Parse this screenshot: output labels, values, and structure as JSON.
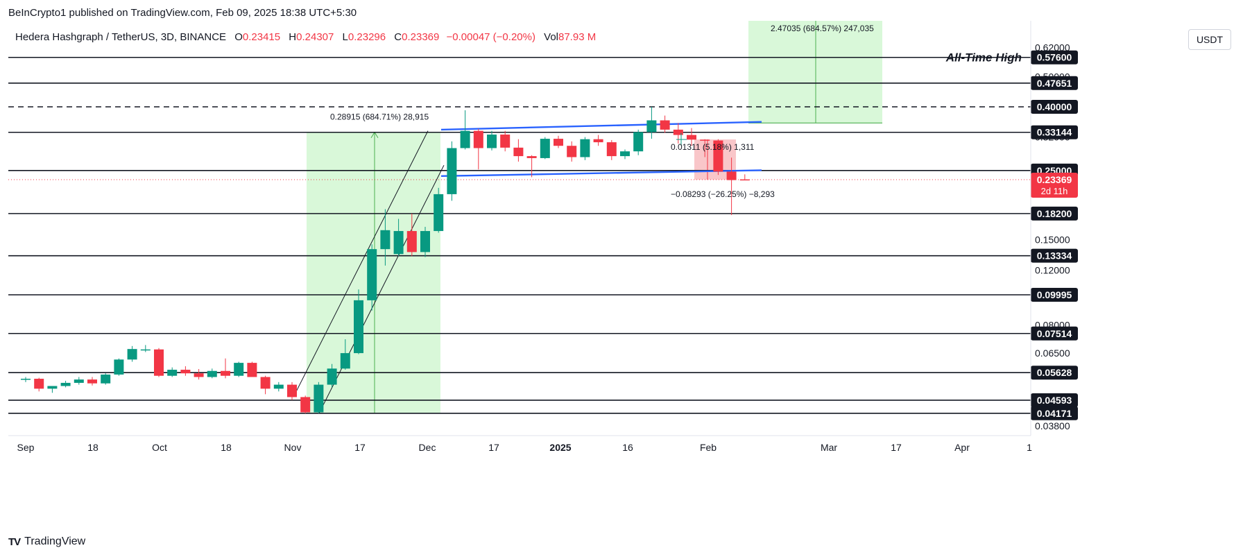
{
  "publisher": "BeInCrypto1 published on TradingView.com, Feb 09, 2025 18:38 UTC+5:30",
  "legend": {
    "symbol": "Hedera Hashgraph / TetherUS, 3D, BINANCE",
    "o_label": "O",
    "o": "0.23415",
    "h_label": "H",
    "h": "0.24307",
    "l_label": "L",
    "l": "0.23296",
    "c_label": "C",
    "c": "0.23369",
    "change": "−0.00047 (−0.20%)",
    "vol_label": "Vol",
    "vol": "87.93 M"
  },
  "currency": "USDT",
  "brand": {
    "logo": "TV",
    "name": "TradingView"
  },
  "colors": {
    "up": "#089981",
    "down": "#f23645",
    "channel": "#2962ff",
    "green_zone": "#ccf5cc",
    "red_zone": "#f7b8bc"
  },
  "chart_data": {
    "type": "candlestick",
    "scale": "log",
    "ylim": [
      0.034,
      0.69
    ],
    "x_ticks": [
      "Sep",
      "18",
      "Oct",
      "18",
      "Nov",
      "17",
      "Dec",
      "17",
      "2025",
      "16",
      "Feb",
      "Mar",
      "17",
      "Apr",
      "1"
    ],
    "price_ticks": [
      0.62,
      0.5,
      0.32,
      0.15,
      0.12,
      0.08,
      0.065,
      0.038
    ],
    "price_tick_labels": [
      "0.62000",
      "0.50000",
      "0.32000",
      "0.15000",
      "0.12000",
      "0.08000",
      "0.06500",
      "0.03800"
    ],
    "candles": [
      {
        "o": 0.0535,
        "h": 0.0545,
        "l": 0.0525,
        "c": 0.0538
      },
      {
        "o": 0.0538,
        "h": 0.0542,
        "l": 0.049,
        "c": 0.05
      },
      {
        "o": 0.05,
        "h": 0.051,
        "l": 0.0485,
        "c": 0.051
      },
      {
        "o": 0.051,
        "h": 0.053,
        "l": 0.0505,
        "c": 0.0522
      },
      {
        "o": 0.0522,
        "h": 0.0545,
        "l": 0.0515,
        "c": 0.0535
      },
      {
        "o": 0.0535,
        "h": 0.0545,
        "l": 0.0512,
        "c": 0.052
      },
      {
        "o": 0.052,
        "h": 0.056,
        "l": 0.0515,
        "c": 0.0555
      },
      {
        "o": 0.0555,
        "h": 0.0625,
        "l": 0.055,
        "c": 0.062
      },
      {
        "o": 0.062,
        "h": 0.0685,
        "l": 0.061,
        "c": 0.067
      },
      {
        "o": 0.0668,
        "h": 0.069,
        "l": 0.0655,
        "c": 0.0668
      },
      {
        "o": 0.0668,
        "h": 0.0675,
        "l": 0.0545,
        "c": 0.055
      },
      {
        "o": 0.055,
        "h": 0.0585,
        "l": 0.0545,
        "c": 0.0575
      },
      {
        "o": 0.0575,
        "h": 0.059,
        "l": 0.055,
        "c": 0.056
      },
      {
        "o": 0.056,
        "h": 0.0578,
        "l": 0.0535,
        "c": 0.0545
      },
      {
        "o": 0.0545,
        "h": 0.058,
        "l": 0.054,
        "c": 0.057
      },
      {
        "o": 0.057,
        "h": 0.0625,
        "l": 0.054,
        "c": 0.055
      },
      {
        "o": 0.055,
        "h": 0.061,
        "l": 0.0545,
        "c": 0.0605
      },
      {
        "o": 0.0605,
        "h": 0.061,
        "l": 0.0545,
        "c": 0.0545
      },
      {
        "o": 0.0545,
        "h": 0.055,
        "l": 0.048,
        "c": 0.05
      },
      {
        "o": 0.05,
        "h": 0.0525,
        "l": 0.049,
        "c": 0.0515
      },
      {
        "o": 0.0515,
        "h": 0.0525,
        "l": 0.046,
        "c": 0.047
      },
      {
        "o": 0.047,
        "h": 0.0475,
        "l": 0.0417,
        "c": 0.042
      },
      {
        "o": 0.042,
        "h": 0.0525,
        "l": 0.0417,
        "c": 0.0515
      },
      {
        "o": 0.0515,
        "h": 0.06,
        "l": 0.0505,
        "c": 0.058
      },
      {
        "o": 0.058,
        "h": 0.072,
        "l": 0.0575,
        "c": 0.065
      },
      {
        "o": 0.065,
        "h": 0.104,
        "l": 0.0645,
        "c": 0.096
      },
      {
        "o": 0.096,
        "h": 0.145,
        "l": 0.089,
        "c": 0.14
      },
      {
        "o": 0.14,
        "h": 0.188,
        "l": 0.124,
        "c": 0.161
      },
      {
        "o": 0.135,
        "h": 0.175,
        "l": 0.133,
        "c": 0.16
      },
      {
        "o": 0.16,
        "h": 0.182,
        "l": 0.133,
        "c": 0.137
      },
      {
        "o": 0.137,
        "h": 0.165,
        "l": 0.132,
        "c": 0.16
      },
      {
        "o": 0.16,
        "h": 0.22,
        "l": 0.158,
        "c": 0.21
      },
      {
        "o": 0.21,
        "h": 0.31,
        "l": 0.2,
        "c": 0.295
      },
      {
        "o": 0.295,
        "h": 0.39,
        "l": 0.292,
        "c": 0.335
      },
      {
        "o": 0.335,
        "h": 0.34,
        "l": 0.252,
        "c": 0.295
      },
      {
        "o": 0.295,
        "h": 0.335,
        "l": 0.29,
        "c": 0.326
      },
      {
        "o": 0.326,
        "h": 0.335,
        "l": 0.288,
        "c": 0.296
      },
      {
        "o": 0.296,
        "h": 0.315,
        "l": 0.267,
        "c": 0.278
      },
      {
        "o": 0.278,
        "h": 0.28,
        "l": 0.238,
        "c": 0.274
      },
      {
        "o": 0.274,
        "h": 0.32,
        "l": 0.272,
        "c": 0.316
      },
      {
        "o": 0.316,
        "h": 0.323,
        "l": 0.295,
        "c": 0.3
      },
      {
        "o": 0.3,
        "h": 0.31,
        "l": 0.267,
        "c": 0.276
      },
      {
        "o": 0.276,
        "h": 0.32,
        "l": 0.27,
        "c": 0.315
      },
      {
        "o": 0.315,
        "h": 0.325,
        "l": 0.3,
        "c": 0.308
      },
      {
        "o": 0.308,
        "h": 0.313,
        "l": 0.27,
        "c": 0.278
      },
      {
        "o": 0.278,
        "h": 0.292,
        "l": 0.272,
        "c": 0.288
      },
      {
        "o": 0.288,
        "h": 0.338,
        "l": 0.28,
        "c": 0.332
      },
      {
        "o": 0.332,
        "h": 0.4,
        "l": 0.316,
        "c": 0.362
      },
      {
        "o": 0.362,
        "h": 0.375,
        "l": 0.33,
        "c": 0.338
      },
      {
        "o": 0.338,
        "h": 0.355,
        "l": 0.305,
        "c": 0.325
      },
      {
        "o": 0.325,
        "h": 0.342,
        "l": 0.3,
        "c": 0.314
      },
      {
        "o": 0.314,
        "h": 0.315,
        "l": 0.276,
        "c": 0.312
      },
      {
        "o": 0.312,
        "h": 0.315,
        "l": 0.242,
        "c": 0.248
      },
      {
        "o": 0.248,
        "h": 0.275,
        "l": 0.18,
        "c": 0.233
      },
      {
        "o": 0.2342,
        "h": 0.2431,
        "l": 0.233,
        "c": 0.2337
      }
    ],
    "horizontal_levels": [
      {
        "value": 0.576,
        "label": "0.57600"
      },
      {
        "value": 0.47651,
        "label": "0.47651"
      },
      {
        "value": 0.4,
        "label": "0.40000",
        "style": "dashed"
      },
      {
        "value": 0.33144,
        "label": "0.33144"
      },
      {
        "value": 0.25,
        "label": "0.25000"
      },
      {
        "value": 0.182,
        "label": "0.18200"
      },
      {
        "value": 0.13334,
        "label": "0.13334"
      },
      {
        "value": 0.09995,
        "label": "0.09995"
      },
      {
        "value": 0.07514,
        "label": "0.07514"
      },
      {
        "value": 0.05628,
        "label": "0.05628"
      },
      {
        "value": 0.04593,
        "label": "0.04593"
      },
      {
        "value": 0.04171,
        "label": "0.04171"
      }
    ],
    "current_price": {
      "value": 0.23369,
      "label": "0.23369",
      "countdown": "2d 11h"
    },
    "ath_label": "All-Time High",
    "annotations": {
      "rally": "0.28915 (684.71%) 28,915",
      "projection": "2.47035 (684.57%) 247,035",
      "small_move": "0.01311 (5.18%) 1,311",
      "drop": "−0.08293 (−26.25%) −8,293"
    }
  }
}
